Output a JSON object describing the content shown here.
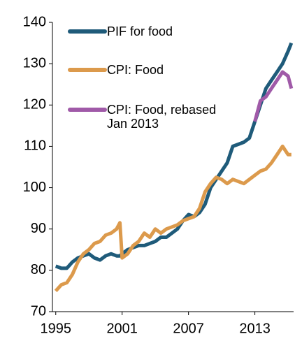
{
  "chart_data": {
    "type": "line",
    "x": [
      1995,
      1995.5,
      1996,
      1996.5,
      1997,
      1997.5,
      1998,
      1998.5,
      1999,
      1999.5,
      2000,
      2000.5,
      2000.8,
      2001,
      2001.5,
      2002,
      2002.5,
      2003,
      2003.5,
      2004,
      2004.5,
      2005,
      2005.5,
      2006,
      2006.5,
      2007,
      2007.5,
      2008,
      2008.5,
      2009,
      2009.5,
      2010,
      2010.5,
      2011,
      2011.5,
      2012,
      2012.5,
      2013,
      2013.5,
      2014,
      2014.5,
      2015,
      2015.5,
      2016,
      2016.3
    ],
    "series": [
      {
        "name": "PIF for food",
        "color": "#1f5b7a",
        "values": [
          81,
          80.5,
          80.5,
          82,
          83,
          83.5,
          84,
          83,
          82.5,
          83.5,
          84,
          83.5,
          83.5,
          84,
          85,
          85.5,
          86,
          86,
          86.5,
          87,
          88,
          88,
          89,
          90,
          92,
          93.5,
          93,
          94,
          96,
          100,
          102,
          104,
          106,
          110,
          110.5,
          111,
          112,
          116,
          120,
          124,
          126,
          128,
          130,
          133,
          135
        ]
      },
      {
        "name": "CPI: Food",
        "color": "#dc9a4c",
        "values": [
          75,
          76.5,
          77,
          79,
          82,
          84,
          85,
          86.5,
          87,
          88.5,
          89,
          90,
          91.5,
          83,
          84,
          86,
          87,
          89,
          88,
          90,
          89,
          90,
          90.5,
          91,
          92,
          92.5,
          93,
          95,
          99,
          101,
          102.5,
          102,
          101,
          102,
          101.5,
          101,
          102,
          103,
          104,
          104.5,
          106,
          108,
          110,
          108,
          108
        ]
      },
      {
        "name": "CPI: Food, rebased Jan 2013",
        "color": "#a05aa8",
        "values": [
          null,
          null,
          null,
          null,
          null,
          null,
          null,
          null,
          null,
          null,
          null,
          null,
          null,
          null,
          null,
          null,
          null,
          null,
          null,
          null,
          null,
          null,
          null,
          null,
          null,
          null,
          null,
          null,
          null,
          null,
          null,
          null,
          null,
          null,
          null,
          null,
          null,
          116,
          121,
          122,
          124,
          126,
          128,
          127,
          124
        ]
      }
    ],
    "xlim": [
      1994.7,
      2016.5
    ],
    "xticks": [
      1995,
      2001,
      2007,
      2013
    ],
    "ylim": [
      70,
      140
    ],
    "yticks": [
      70,
      80,
      90,
      100,
      110,
      120,
      130,
      140
    ]
  }
}
